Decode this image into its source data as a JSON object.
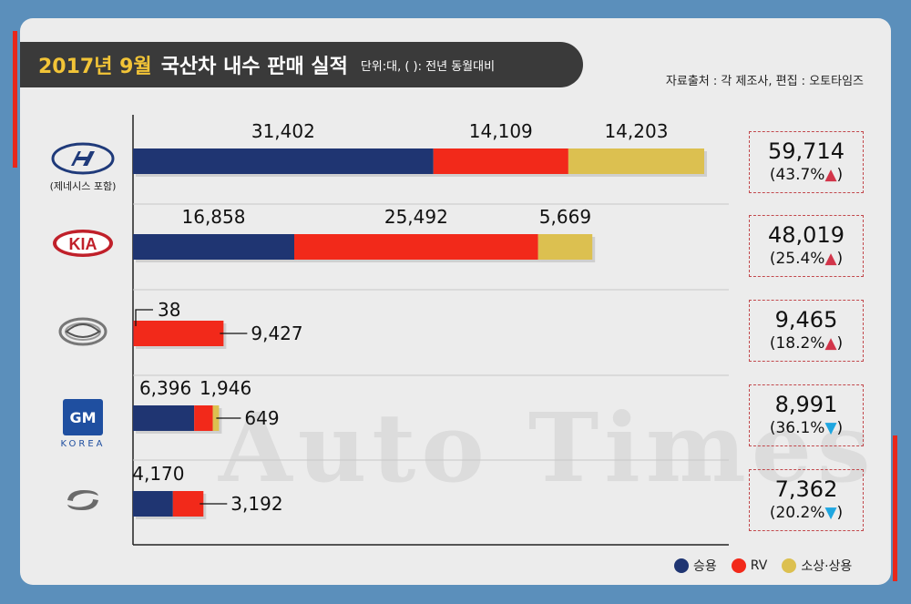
{
  "header": {
    "title_highlight": "2017년 9월",
    "title_main": "국산차 내수 판매 실적",
    "unit_note": "단위:대, ( ): 전년 동월대비",
    "source": "자료출처 : 각 제조사, 편집 : 오토타임즈"
  },
  "watermark": "Auto Times",
  "colors": {
    "passenger": "#1f3572",
    "rv": "#f2291a",
    "commercial": "#dcc050",
    "up": "#d2354a",
    "down": "#1fa6e0"
  },
  "logos": {
    "hyundai": {
      "icon": "hyundai-logo",
      "caption": "(제네시스 포함)"
    },
    "kia": {
      "icon": "kia-logo",
      "text": "KIA"
    },
    "ssangyong": {
      "icon": "ssangyong-logo"
    },
    "gm": {
      "icon": "gm-korea-logo",
      "text": "GM",
      "caption": "KOREA"
    },
    "renault": {
      "icon": "renault-samsung-logo"
    }
  },
  "totals": [
    {
      "value": "59,714",
      "pct": "(43.7%",
      "arrow": "▲"
    },
    {
      "value": "48,019",
      "pct": "(25.4%",
      "arrow": "▲"
    },
    {
      "value": "9,465",
      "pct": "(18.2%",
      "arrow": "▲"
    },
    {
      "value": "8,991",
      "pct": "(36.1%",
      "arrow": "▼"
    },
    {
      "value": "7,362",
      "pct": "(20.2%",
      "arrow": "▼"
    }
  ],
  "legend": [
    {
      "label": "승용",
      "color": "#1f3572"
    },
    {
      "label": "RV",
      "color": "#f2291a"
    },
    {
      "label": "소상·상용",
      "color": "#dcc050"
    }
  ],
  "chart_data": {
    "type": "bar",
    "orientation": "horizontal",
    "stacked": true,
    "categories": [
      "Hyundai",
      "Kia",
      "SsangYong",
      "GM Korea",
      "Renault Samsung"
    ],
    "series": [
      {
        "name": "승용",
        "values": [
          31402,
          16858,
          38,
          6396,
          4170
        ],
        "labels": [
          "31,402",
          "16,858",
          "38",
          "6,396",
          "4,170"
        ]
      },
      {
        "name": "RV",
        "values": [
          14109,
          25492,
          9427,
          1946,
          3192
        ],
        "labels": [
          "14,109",
          "25,492",
          "9,427",
          "1,946",
          "3,192"
        ]
      },
      {
        "name": "소상·상용",
        "values": [
          14203,
          5669,
          0,
          649,
          0
        ],
        "labels": [
          "14,203",
          "5,669",
          "",
          "649",
          ""
        ]
      }
    ],
    "xlim": [
      0,
      60000
    ],
    "grid": false,
    "legend_position": "bottom-right"
  }
}
